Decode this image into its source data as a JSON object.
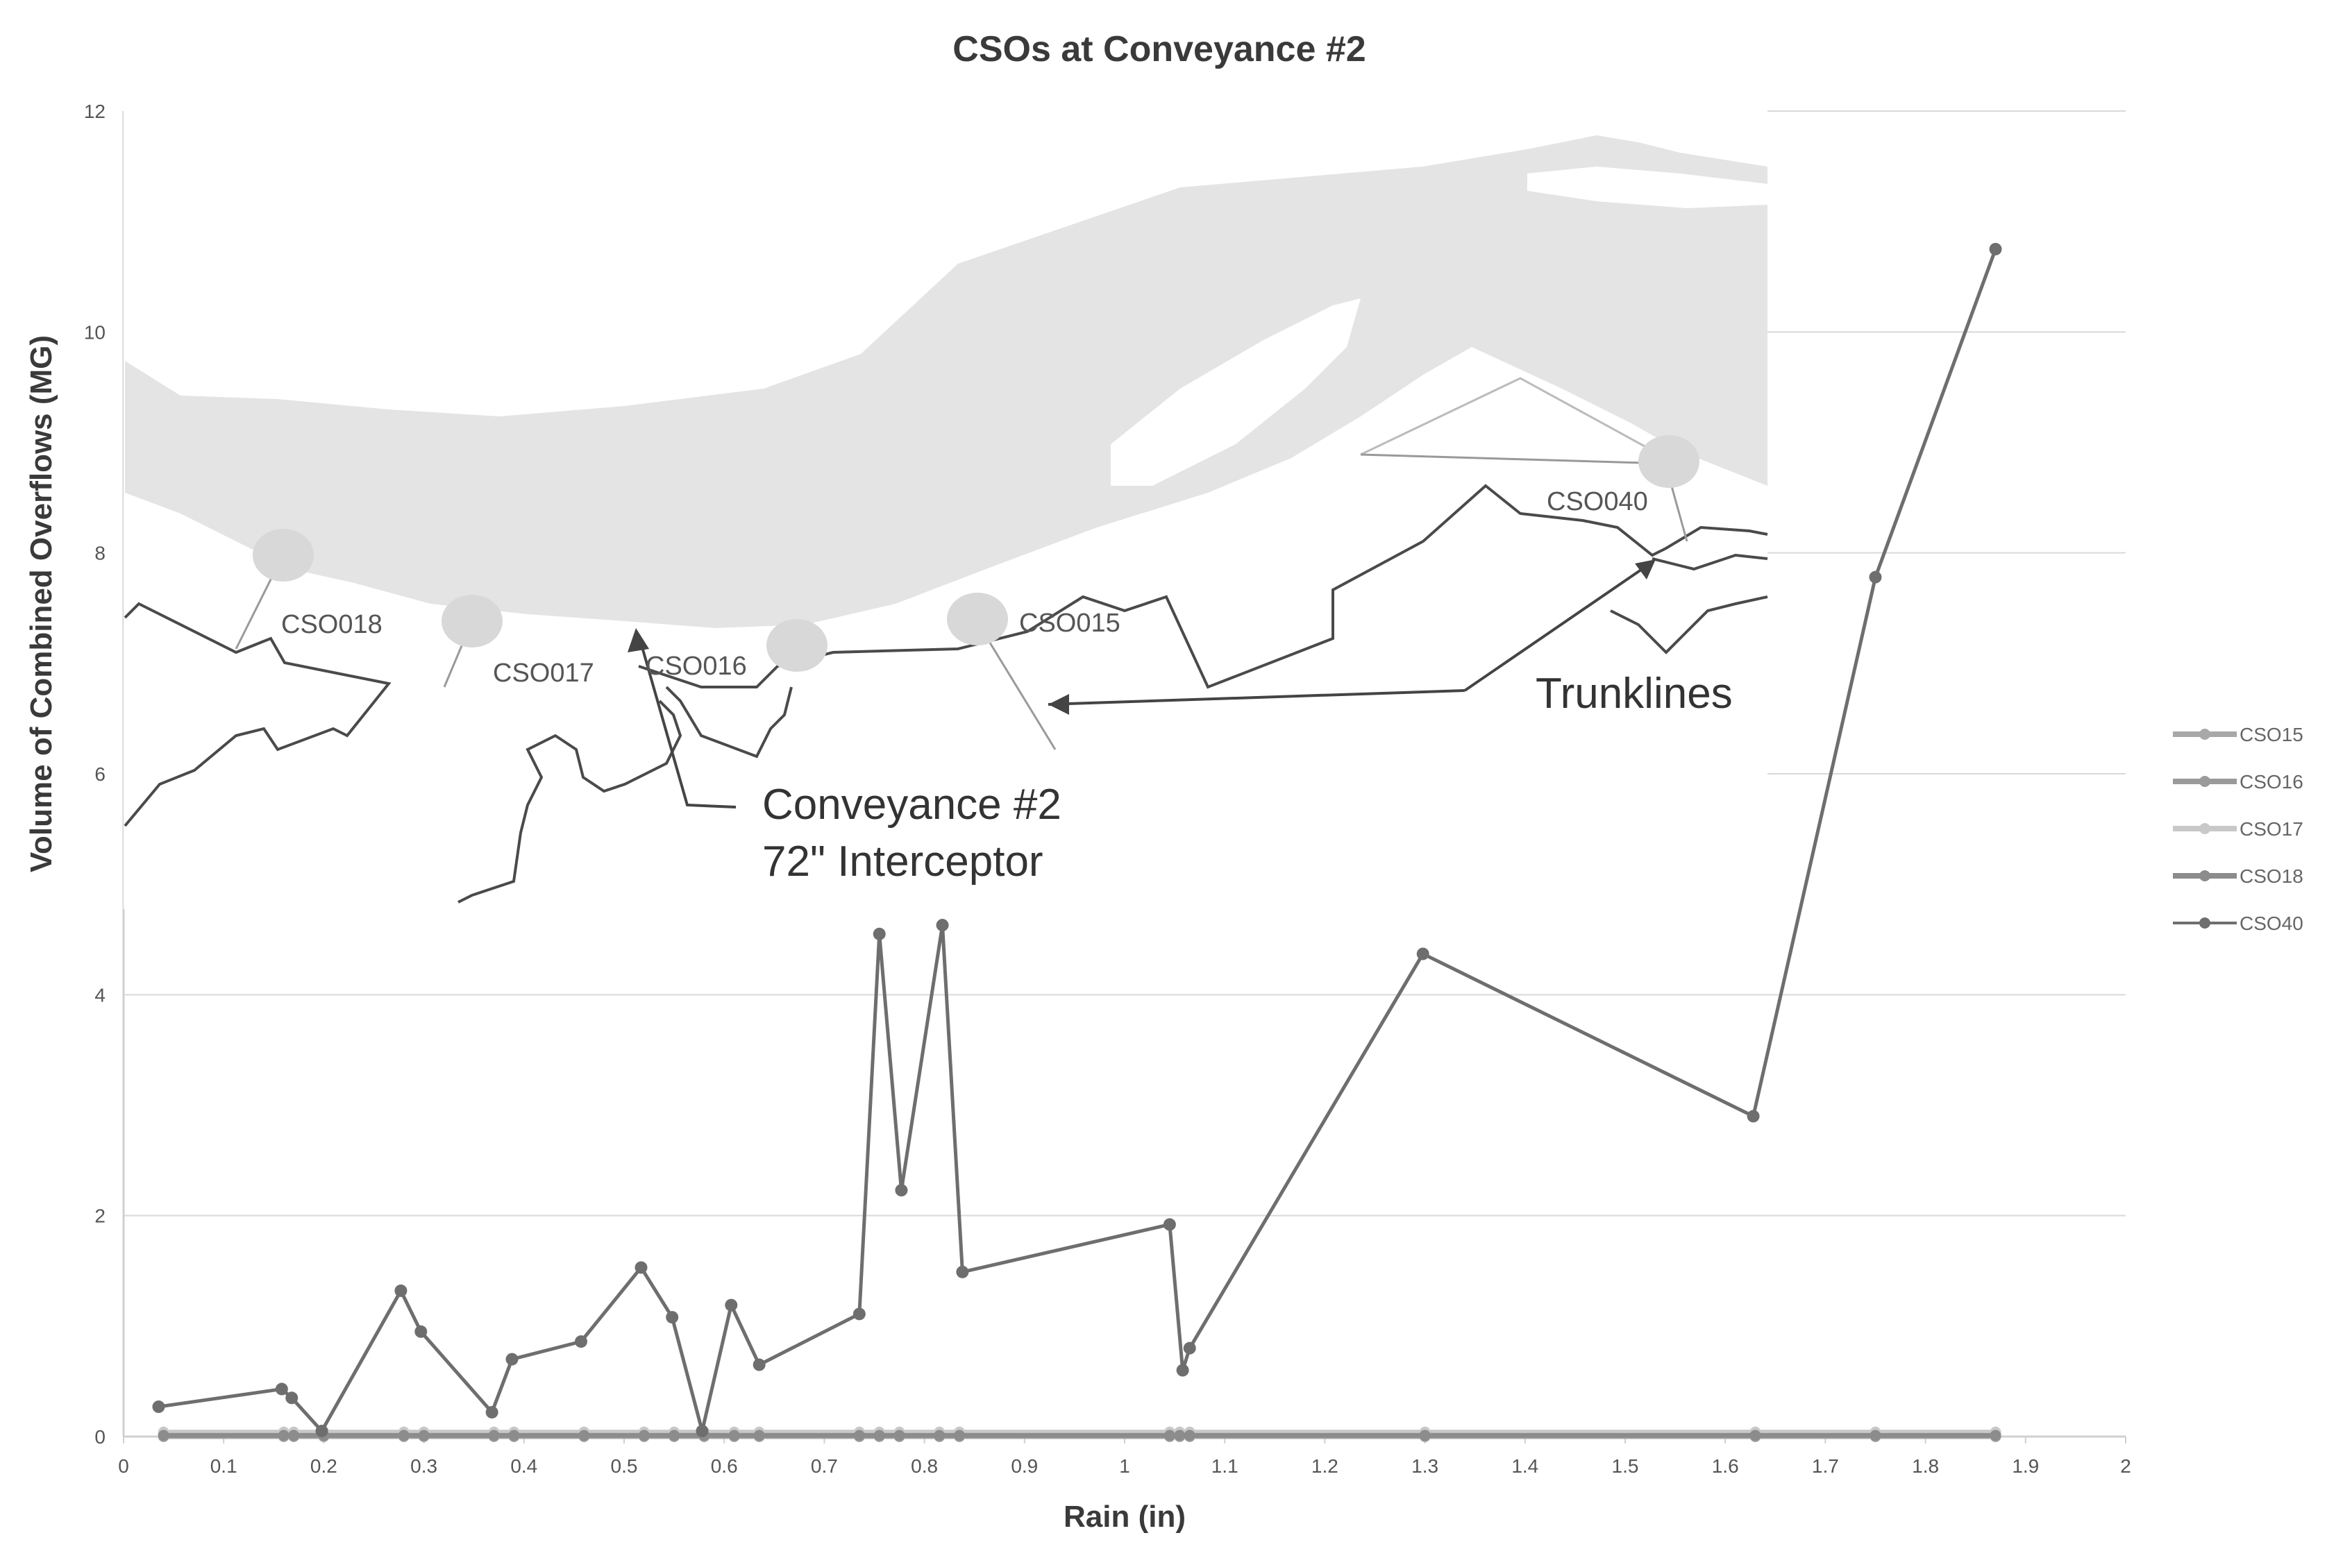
{
  "chart_data": {
    "type": "scatter",
    "title": "CSOs at Conveyance #2",
    "xlabel": "Rain (in)",
    "ylabel": "Volume of Combined Overflows (MG)",
    "xlim": [
      0,
      2
    ],
    "ylim": [
      0,
      12
    ],
    "xticks": [
      "0",
      "0.1",
      "0.2",
      "0.3",
      "0.4",
      "0.5",
      "0.6",
      "0.7",
      "0.8",
      "0.9",
      "1",
      "1.1",
      "1.2",
      "1.3",
      "1.4",
      "1.5",
      "1.6",
      "1.7",
      "1.8",
      "1.9",
      "2"
    ],
    "yticks": [
      "0",
      "2",
      "4",
      "6",
      "8",
      "10",
      "12"
    ],
    "grid": "horizontal",
    "legend_position": "right",
    "series": [
      {
        "name": "CSO15",
        "color": "#a8a8a8",
        "x": [
          0.04,
          0.16,
          0.17,
          0.2,
          0.28,
          0.3,
          0.37,
          0.39,
          0.46,
          0.52,
          0.55,
          0.58,
          0.61,
          0.635,
          0.735,
          0.755,
          0.775,
          0.815,
          0.835,
          1.045,
          1.055,
          1.065,
          1.3,
          1.63,
          1.75,
          1.87
        ],
        "y": [
          0,
          0,
          0,
          0,
          0,
          0,
          0,
          0,
          0,
          0,
          0,
          0,
          0,
          0,
          0,
          0,
          0,
          0,
          0,
          0,
          0,
          0,
          0,
          0,
          0,
          0
        ]
      },
      {
        "name": "CSO16",
        "color": "#9a9a9a",
        "x": [
          0.04,
          0.16,
          0.17,
          0.2,
          0.28,
          0.3,
          0.37,
          0.39,
          0.46,
          0.52,
          0.55,
          0.58,
          0.61,
          0.635,
          0.735,
          0.755,
          0.775,
          0.815,
          0.835,
          1.045,
          1.055,
          1.065,
          1.3,
          1.63,
          1.75,
          1.87
        ],
        "y": [
          0.02,
          0.02,
          0.02,
          0.02,
          0.02,
          0.02,
          0.02,
          0.02,
          0.02,
          0.02,
          0.02,
          0.02,
          0.02,
          0.02,
          0.02,
          0.02,
          0.02,
          0.02,
          0.02,
          0.02,
          0.02,
          0.02,
          0.02,
          0.02,
          0.02,
          0.02
        ]
      },
      {
        "name": "CSO17",
        "color": "#c8c8c8",
        "x": [
          0.04,
          0.16,
          0.17,
          0.2,
          0.28,
          0.3,
          0.37,
          0.39,
          0.46,
          0.52,
          0.55,
          0.58,
          0.61,
          0.635,
          0.735,
          0.755,
          0.775,
          0.815,
          0.835,
          1.045,
          1.055,
          1.065,
          1.3,
          1.63,
          1.75,
          1.87
        ],
        "y": [
          0.04,
          0.04,
          0.04,
          0.04,
          0.04,
          0.04,
          0.04,
          0.04,
          0.04,
          0.04,
          0.04,
          0.04,
          0.04,
          0.04,
          0.04,
          0.04,
          0.04,
          0.04,
          0.04,
          0.04,
          0.04,
          0.04,
          0.04,
          0.04,
          0.04,
          0.04
        ]
      },
      {
        "name": "CSO18",
        "color": "#8c8c8c",
        "x": [
          0.04,
          0.16,
          0.17,
          0.2,
          0.28,
          0.3,
          0.37,
          0.39,
          0.46,
          0.52,
          0.55,
          0.58,
          0.61,
          0.635,
          0.735,
          0.755,
          0.775,
          0.815,
          0.835,
          1.045,
          1.055,
          1.065,
          1.3,
          1.63,
          1.75,
          1.87
        ],
        "y": [
          0.01,
          0.01,
          0.01,
          0.01,
          0.01,
          0.01,
          0.01,
          0.01,
          0.01,
          0.01,
          0.01,
          0.01,
          0.01,
          0.01,
          0.01,
          0.01,
          0.01,
          0.01,
          0.01,
          0.01,
          0.01,
          0.01,
          0.01,
          0.01,
          0.01,
          0.01
        ]
      },
      {
        "name": "CSO40",
        "color": "#6e6e6e",
        "x": [
          0.035,
          0.158,
          0.168,
          0.198,
          0.277,
          0.297,
          0.368,
          0.388,
          0.457,
          0.517,
          0.548,
          0.578,
          0.607,
          0.635,
          0.735,
          0.755,
          0.777,
          0.818,
          0.838,
          1.045,
          1.058,
          1.065,
          1.298,
          1.628,
          1.75,
          1.87
        ],
        "y": [
          0.27,
          0.43,
          0.35,
          0.05,
          1.32,
          0.95,
          0.22,
          0.7,
          0.86,
          1.53,
          1.08,
          0.05,
          1.19,
          0.65,
          1.11,
          4.55,
          2.23,
          4.63,
          1.49,
          1.92,
          0.6,
          0.8,
          4.37,
          2.9,
          7.78,
          10.75
        ]
      }
    ]
  },
  "map_overlay": {
    "labels": {
      "cso018": "CSO018",
      "cso017": "CSO017",
      "cso016": "CSO016",
      "cso015": "CSO015",
      "cso040": "CSO040",
      "trunklines": "Trunklines",
      "conveyance_line1": "Conveyance #2",
      "conveyance_line2": "72\" Interceptor"
    },
    "colors": {
      "river": "#e4e4e4",
      "marker": "#dadada",
      "lines": "#4a4a4a"
    }
  }
}
